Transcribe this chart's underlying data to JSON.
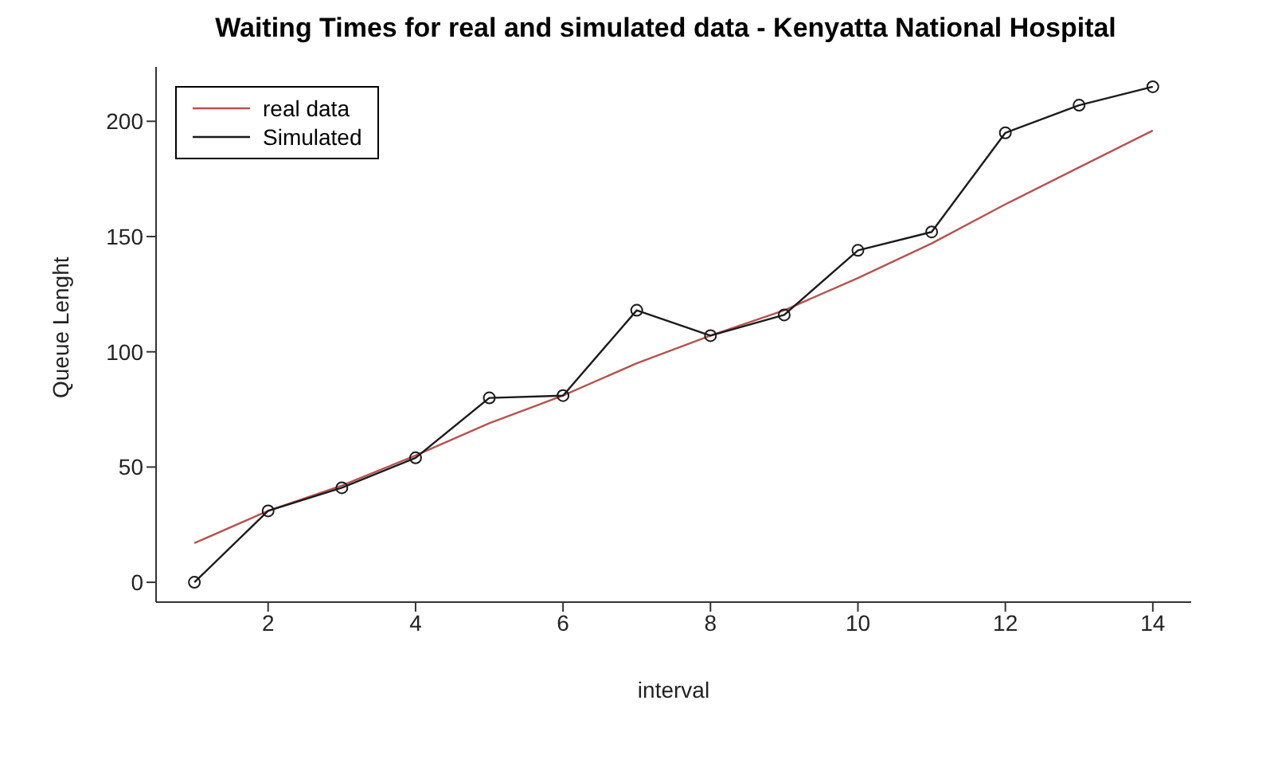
{
  "chart_data": {
    "type": "line",
    "title": "Waiting Times for real and simulated data - Kenyatta National Hospital",
    "xlabel": "interval",
    "ylabel": "Queue Lenght",
    "x": [
      1,
      2,
      3,
      4,
      5,
      6,
      7,
      8,
      9,
      10,
      11,
      12,
      13,
      14
    ],
    "series": [
      {
        "name": "real data",
        "color": "#b5534e",
        "marker": "none",
        "values": [
          17,
          31,
          42,
          55,
          69,
          81,
          95,
          107,
          118,
          132,
          147,
          164,
          180,
          196
        ]
      },
      {
        "name": "Simulated",
        "color": "#1a1a1a",
        "marker": "circle",
        "values": [
          0,
          31,
          41,
          54,
          80,
          81,
          118,
          107,
          116,
          144,
          152,
          195,
          207,
          215
        ]
      }
    ],
    "xlim": [
      0.48,
      14.52
    ],
    "xticks": [
      2,
      4,
      6,
      8,
      10,
      12,
      14
    ],
    "ylim": [
      -8.6,
      223.6
    ],
    "yticks": [
      0,
      50,
      100,
      150,
      200
    ],
    "grid": false,
    "legend": "top left",
    "line_style": "solid"
  }
}
